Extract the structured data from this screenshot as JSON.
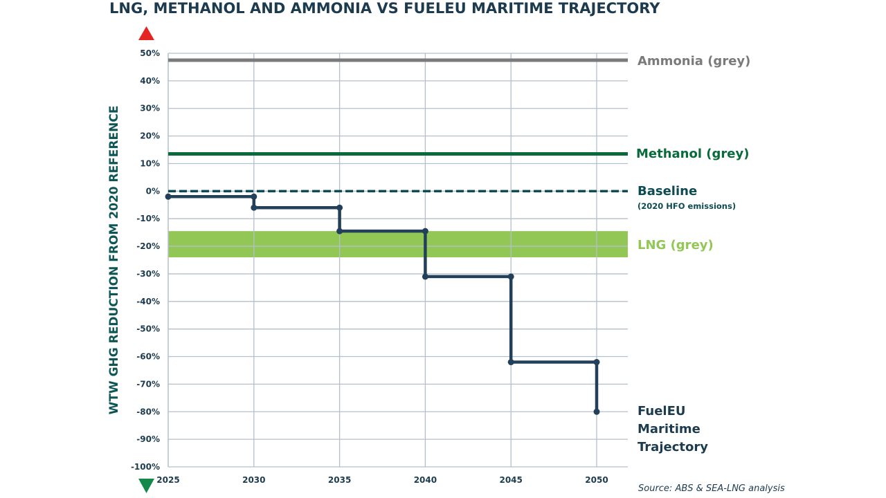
{
  "chart_data": {
    "type": "line",
    "title": "LNG, METHANOL AND AMMONIA VS FUELEU MARITIME TRAJECTORY",
    "ylabel": "WTW GHG REDUCTION FROM 2020 REFERENCE",
    "xlabel": "",
    "ylim": [
      -100,
      50
    ],
    "xlim": [
      2025,
      2052
    ],
    "yticks": [
      "50%",
      "40%",
      "30%",
      "20%",
      "10%",
      "0%",
      "-10%",
      "-20%",
      "-30%",
      "-40%",
      "-50%",
      "-60%",
      "-70%",
      "-80%",
      "-90%",
      "-100%"
    ],
    "ytick_values": [
      50,
      40,
      30,
      20,
      10,
      0,
      -10,
      -20,
      -30,
      -40,
      -50,
      -60,
      -70,
      -80,
      -90,
      -100
    ],
    "xticks": [
      "2025",
      "2030",
      "2035",
      "2040",
      "2045",
      "2050"
    ],
    "xtick_values": [
      2025,
      2030,
      2035,
      2040,
      2045,
      2050
    ],
    "grid": true,
    "series": [
      {
        "name": "FuelEU Maritime Trajectory",
        "kind": "step",
        "color": "#22405a",
        "x": [
          2025,
          2030,
          2035,
          2040,
          2045,
          2050
        ],
        "y": [
          -2,
          -6,
          -14.5,
          -31,
          -62,
          -80
        ]
      },
      {
        "name": "Ammonia (grey)",
        "kind": "hline",
        "color": "#7a7a7a",
        "y": 47.5
      },
      {
        "name": "Methanol (grey)",
        "kind": "hline",
        "color": "#0a6b3a",
        "y": 13.5
      },
      {
        "name": "Baseline",
        "sublabel": "(2020 HFO emissions)",
        "kind": "dashed-hline",
        "color": "#0d4a52",
        "y": 0
      },
      {
        "name": "LNG (grey)",
        "kind": "band",
        "color": "#92c655",
        "y_range": [
          -24,
          -14.5
        ]
      }
    ],
    "annotations": {
      "up_arrow_color": "#e52421",
      "down_arrow_color": "#138a4a",
      "source": "Source: ABS & SEA-LNG analysis"
    }
  }
}
